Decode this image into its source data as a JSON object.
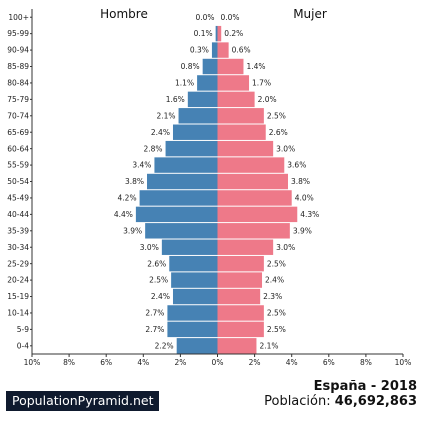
{
  "chart_data": {
    "type": "bar",
    "orientation": "horizontal",
    "title": "España - 2018",
    "population_label": "Población:",
    "population_value": "46,692,863",
    "series_labels": {
      "male": "Hombre",
      "female": "Mujer"
    },
    "colors": {
      "male": "#4682b4",
      "female": "#ee7989"
    },
    "xlim": [
      -10,
      10
    ],
    "x_ticks": [
      "10%",
      "8%",
      "6%",
      "4%",
      "2%",
      "0%",
      "2%",
      "4%",
      "6%",
      "8%",
      "10%"
    ],
    "categories": [
      "100+",
      "95-99",
      "90-94",
      "85-89",
      "80-84",
      "75-79",
      "70-74",
      "65-69",
      "60-64",
      "55-59",
      "50-54",
      "45-49",
      "40-44",
      "35-39",
      "30-34",
      "25-29",
      "20-24",
      "15-19",
      "10-14",
      "5-9",
      "0-4"
    ],
    "series": [
      {
        "name": "Hombre",
        "values": [
          0.0,
          0.1,
          0.3,
          0.8,
          1.1,
          1.6,
          2.1,
          2.4,
          2.8,
          3.4,
          3.8,
          4.2,
          4.4,
          3.9,
          3.0,
          2.6,
          2.5,
          2.4,
          2.7,
          2.7,
          2.2
        ]
      },
      {
        "name": "Mujer",
        "values": [
          0.0,
          0.2,
          0.6,
          1.4,
          1.7,
          2.0,
          2.5,
          2.6,
          3.0,
          3.6,
          3.8,
          4.0,
          4.3,
          3.9,
          3.0,
          2.5,
          2.4,
          2.3,
          2.5,
          2.5,
          2.1
        ]
      }
    ],
    "value_labels": {
      "Hombre": [
        "0.0%",
        "0.1%",
        "0.3%",
        "0.8%",
        "1.1%",
        "1.6%",
        "2.1%",
        "2.4%",
        "2.8%",
        "3.4%",
        "3.8%",
        "4.2%",
        "4.4%",
        "3.9%",
        "3.0%",
        "2.6%",
        "2.5%",
        "2.4%",
        "2.7%",
        "2.7%",
        "2.2%"
      ],
      "Mujer": [
        "0.0%",
        "0.2%",
        "0.6%",
        "1.4%",
        "1.7%",
        "2.0%",
        "2.5%",
        "2.6%",
        "3.0%",
        "3.6%",
        "3.8%",
        "4.0%",
        "4.3%",
        "3.9%",
        "3.0%",
        "2.5%",
        "2.4%",
        "2.3%",
        "2.5%",
        "2.5%",
        "2.1%"
      ]
    }
  },
  "branding": {
    "site_name": "PopulationPyramid.net"
  }
}
